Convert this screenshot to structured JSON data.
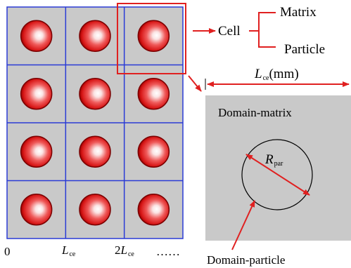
{
  "colors": {
    "cell_fill": "#c9c9c9",
    "grid_line": "#2a3bd6",
    "highlight_box": "#e02020",
    "arrow": "#e02020",
    "particle_rim": "#7a0000",
    "circle_outline": "#000000"
  },
  "icons": {
    "particle": "red-sphere-icon",
    "arrow": "red-arrow-icon"
  },
  "grid": {
    "rows": 4,
    "cols": 3,
    "axis_labels": {
      "zero": "0",
      "one_symbol": "L",
      "one_sub": "ce",
      "two_prefix": "2",
      "two_symbol": "L",
      "two_sub": "ce",
      "ellipsis": "……"
    }
  },
  "tree": {
    "root": "Cell",
    "children": [
      "Matrix",
      "Particle"
    ]
  },
  "dimension": {
    "symbol": "L",
    "sub": "ce",
    "unit": "(mm)"
  },
  "domain": {
    "matrix_label": "Domain-matrix",
    "particle_label": "Domain-particle",
    "radius_symbol": "R",
    "radius_sub": "par"
  }
}
